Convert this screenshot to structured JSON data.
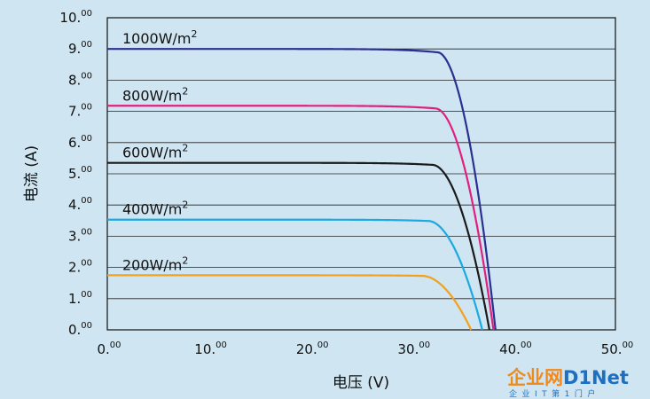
{
  "chart_data": {
    "type": "line",
    "xlabel": "电压 (V)",
    "ylabel": "电流 (A)",
    "xlim": [
      0,
      50
    ],
    "ylim": [
      0,
      10
    ],
    "x_ticks": [
      {
        "base": "0.",
        "sup": "00"
      },
      {
        "base": "10.",
        "sup": "00"
      },
      {
        "base": "20.",
        "sup": "00"
      },
      {
        "base": "30.",
        "sup": "00"
      },
      {
        "base": "40.",
        "sup": "00"
      },
      {
        "base": "50.",
        "sup": "00"
      }
    ],
    "y_ticks": [
      {
        "base": "0.",
        "sup": "00"
      },
      {
        "base": "1.",
        "sup": "00"
      },
      {
        "base": "2.",
        "sup": "00"
      },
      {
        "base": "3.",
        "sup": "00"
      },
      {
        "base": "4.",
        "sup": "00"
      },
      {
        "base": "5.",
        "sup": "00"
      },
      {
        "base": "6.",
        "sup": "00"
      },
      {
        "base": "7.",
        "sup": "00"
      },
      {
        "base": "8.",
        "sup": "00"
      },
      {
        "base": "9.",
        "sup": "00"
      },
      {
        "base": "10.",
        "sup": "00"
      }
    ],
    "grid": true,
    "series": [
      {
        "name": "1000W/m",
        "sup": "2",
        "color": "#2b2f8f",
        "isc": 9.0,
        "voc": 38.2,
        "knee": 32.5
      },
      {
        "name": "800W/m",
        "sup": "2",
        "color": "#e0207f",
        "isc": 7.18,
        "voc": 38.0,
        "knee": 32.3
      },
      {
        "name": "600W/m",
        "sup": "2",
        "color": "#1a1a1a",
        "isc": 5.35,
        "voc": 37.6,
        "knee": 32.0
      },
      {
        "name": "400W/m",
        "sup": "2",
        "color": "#1aa9e0",
        "isc": 3.53,
        "voc": 36.9,
        "knee": 31.6
      },
      {
        "name": "200W/m",
        "sup": "2",
        "color": "#f5a01a",
        "isc": 1.75,
        "voc": 35.8,
        "knee": 31.0
      }
    ]
  },
  "logo": {
    "cn_text": "企业网",
    "en_text": "D1Net",
    "sub_text": "企业IT第1门户"
  }
}
